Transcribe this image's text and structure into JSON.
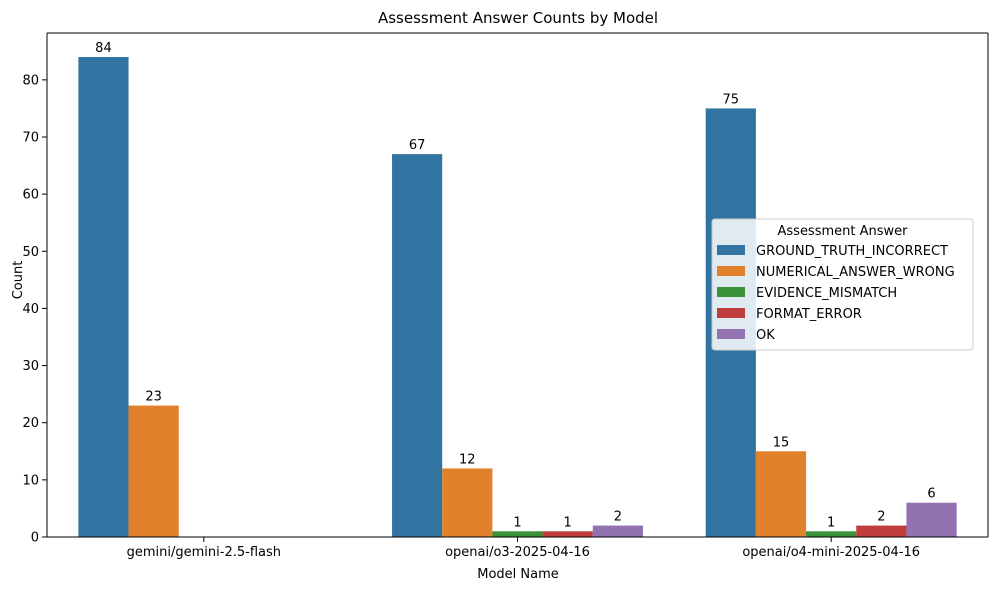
{
  "chart_data": {
    "type": "bar",
    "title": "Assessment Answer Counts by Model",
    "xlabel": "Model Name",
    "ylabel": "Count",
    "ylim": [
      0,
      88.2
    ],
    "yticks": [
      0,
      10,
      20,
      30,
      40,
      50,
      60,
      70,
      80
    ],
    "categories": [
      "gemini/gemini-2.5-flash",
      "openai/o3-2025-04-16",
      "openai/o4-mini-2025-04-16"
    ],
    "legend_title": "Assessment Answer",
    "legend_position": "center-right",
    "grid": false,
    "series": [
      {
        "name": "GROUND_TRUTH_INCORRECT",
        "color": "#3274a1",
        "values": [
          84,
          67,
          75
        ]
      },
      {
        "name": "NUMERICAL_ANSWER_WRONG",
        "color": "#e1812c",
        "values": [
          23,
          12,
          15
        ]
      },
      {
        "name": "EVIDENCE_MISMATCH",
        "color": "#3a923a",
        "values": [
          null,
          1,
          1
        ]
      },
      {
        "name": "FORMAT_ERROR",
        "color": "#c03d3e",
        "values": [
          null,
          1,
          2
        ]
      },
      {
        "name": "OK",
        "color": "#9372b2",
        "values": [
          null,
          2,
          6
        ]
      }
    ]
  }
}
